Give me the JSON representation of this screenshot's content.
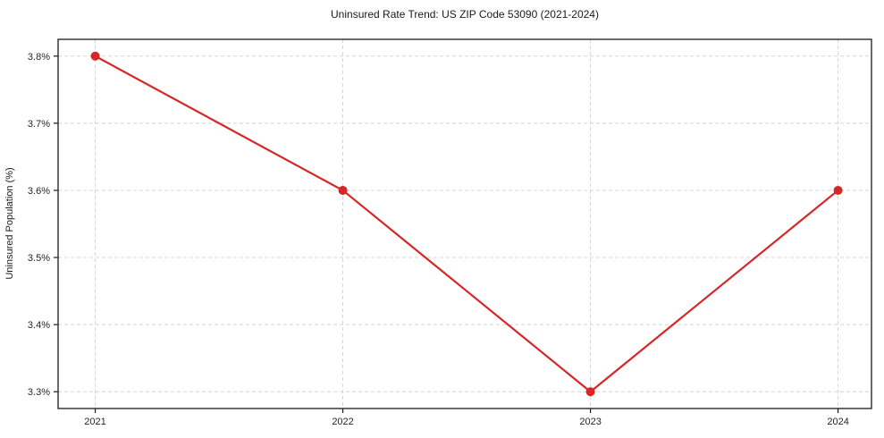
{
  "page": {
    "background": "#ffffff"
  },
  "chart_data": {
    "type": "line",
    "title": "Uninsured Rate Trend: US ZIP Code 53090 (2021-2024)",
    "xlabel": "",
    "ylabel": "Uninsured Population (%)",
    "x": [
      2021,
      2022,
      2023,
      2024
    ],
    "values": [
      3.8,
      3.6,
      3.3,
      3.6
    ],
    "x_tick_labels": [
      "2021",
      "2022",
      "2023",
      "2024"
    ],
    "y_ticks": [
      3.3,
      3.4,
      3.5,
      3.6,
      3.7,
      3.8
    ],
    "y_tick_labels": [
      "3.3%",
      "3.4%",
      "3.5%",
      "3.6%",
      "3.7%",
      "3.8%"
    ],
    "xlim": [
      2020.85,
      2024.135
    ],
    "ylim": [
      3.275,
      3.825
    ],
    "grid": true,
    "grid_style": "dashed",
    "legend": false,
    "line_color": "#d62728",
    "marker": "circle",
    "marker_radius": 5,
    "line_width": 2.2,
    "grid_color": "#d4d4d4",
    "axis_color": "#1a1a1a"
  }
}
